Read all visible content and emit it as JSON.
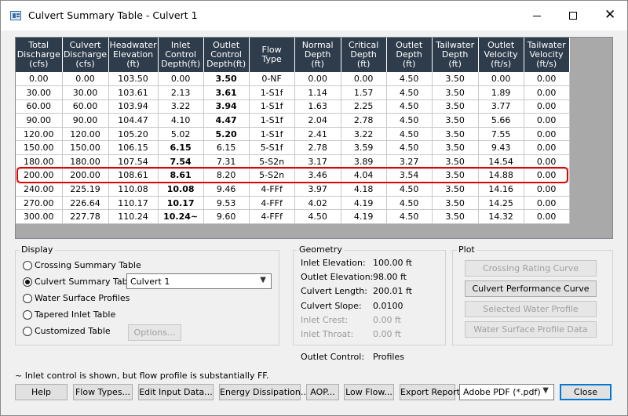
{
  "window": {
    "title": "Culvert Summary Table - Culvert 1"
  },
  "table": {
    "columns": [
      "Total\nDischarge\n(cfs)",
      "Culvert\nDischarge\n(cfs)",
      "Headwater\nElevation\n(ft)",
      "Inlet\nControl\nDepth(ft)",
      "Outlet\nControl\nDepth(ft)",
      "Flow\nType",
      "Normal\nDepth\n(ft)",
      "Critical\nDepth\n(ft)",
      "Outlet\nDepth\n(ft)",
      "Tailwater\nDepth\n(ft)",
      "Outlet\nVelocity\n(ft/s)",
      "Tailwater\nVelocity\n(ft/s)"
    ],
    "rows": [
      [
        "0.00",
        "0.00",
        "103.50",
        "0.00",
        "3.50",
        "0-NF",
        "0.00",
        "0.00",
        "4.50",
        "3.50",
        "0.00",
        "0.00"
      ],
      [
        "30.00",
        "30.00",
        "103.61",
        "2.13",
        "3.61",
        "1-S1f",
        "1.14",
        "1.57",
        "4.50",
        "3.50",
        "1.89",
        "0.00"
      ],
      [
        "60.00",
        "60.00",
        "103.94",
        "3.22",
        "3.94",
        "1-S1f",
        "1.63",
        "2.25",
        "4.50",
        "3.50",
        "3.77",
        "0.00"
      ],
      [
        "90.00",
        "90.00",
        "104.47",
        "4.10",
        "4.47",
        "1-S1f",
        "2.04",
        "2.78",
        "4.50",
        "3.50",
        "5.66",
        "0.00"
      ],
      [
        "120.00",
        "120.00",
        "105.20",
        "5.02",
        "5.20",
        "1-S1f",
        "2.41",
        "3.22",
        "4.50",
        "3.50",
        "7.55",
        "0.00"
      ],
      [
        "150.00",
        "150.00",
        "106.15",
        "6.15",
        "6.15",
        "5-S1f",
        "2.78",
        "3.59",
        "4.50",
        "3.50",
        "9.43",
        "0.00"
      ],
      [
        "180.00",
        "180.00",
        "107.54",
        "7.54",
        "7.31",
        "5-S2n",
        "3.17",
        "3.89",
        "3.27",
        "3.50",
        "14.54",
        "0.00"
      ],
      [
        "200.00",
        "200.00",
        "108.61",
        "8.61",
        "8.20",
        "5-S2n",
        "3.46",
        "4.04",
        "3.54",
        "3.50",
        "14.88",
        "0.00"
      ],
      [
        "240.00",
        "225.19",
        "110.08",
        "10.08",
        "9.46",
        "4-FFf",
        "3.97",
        "4.18",
        "4.50",
        "3.50",
        "14.16",
        "0.00"
      ],
      [
        "270.00",
        "226.64",
        "110.17",
        "10.17",
        "9.53",
        "4-FFf",
        "4.02",
        "4.19",
        "4.50",
        "3.50",
        "14.25",
        "0.00"
      ],
      [
        "300.00",
        "227.78",
        "110.24",
        "10.24~",
        "9.60",
        "4-FFf",
        "4.50",
        "4.19",
        "4.50",
        "3.50",
        "14.32",
        "0.00"
      ]
    ],
    "bold_col": [
      4,
      4,
      4,
      4,
      4,
      3,
      3,
      3,
      3,
      3,
      3
    ],
    "highlight_row": 7
  },
  "display": {
    "label": "Display",
    "options": [
      {
        "label": "Crossing Summary Table",
        "checked": false
      },
      {
        "label": "Culvert Summary Table",
        "checked": true
      },
      {
        "label": "Water Surface Profiles",
        "checked": false
      },
      {
        "label": "Tapered Inlet Table",
        "checked": false
      },
      {
        "label": "Customized Table",
        "checked": false
      }
    ],
    "culvert_select": "Culvert 1",
    "options_button": "Options..."
  },
  "geometry": {
    "label": "Geometry",
    "rows": [
      {
        "label": "Inlet Elevation:",
        "value": "100.00 ft",
        "disabled": false
      },
      {
        "label": "Outlet Elevation:",
        "value": "98.00 ft",
        "disabled": false
      },
      {
        "label": "Culvert Length:",
        "value": "200.01 ft",
        "disabled": false
      },
      {
        "label": "Culvert Slope:",
        "value": "0.0100",
        "disabled": false
      },
      {
        "label": "Inlet Crest:",
        "value": "0.00 ft",
        "disabled": true
      },
      {
        "label": "Inlet Throat:",
        "value": "0.00 ft",
        "disabled": true
      }
    ],
    "outlet_control_label": "Outlet Control:",
    "outlet_control_value": "Profiles"
  },
  "plot": {
    "label": "Plot",
    "buttons": [
      {
        "label": "Crossing Rating Curve",
        "disabled": true
      },
      {
        "label": "Culvert Performance Curve",
        "disabled": false
      },
      {
        "label": "Selected Water Profile",
        "disabled": true
      },
      {
        "label": "Water Surface Profile Data",
        "disabled": true
      }
    ]
  },
  "note": "~ Inlet control is shown, but flow profile is substantially FF.",
  "bottom": {
    "help": "Help",
    "flow_types": "Flow Types...",
    "edit_input": "Edit Input Data...",
    "energy": "Energy Dissipation...",
    "aop": "AOP...",
    "low_flow": "Low Flow...",
    "export": "Export Report",
    "format": "Adobe PDF (*.pdf)",
    "close": "Close"
  }
}
